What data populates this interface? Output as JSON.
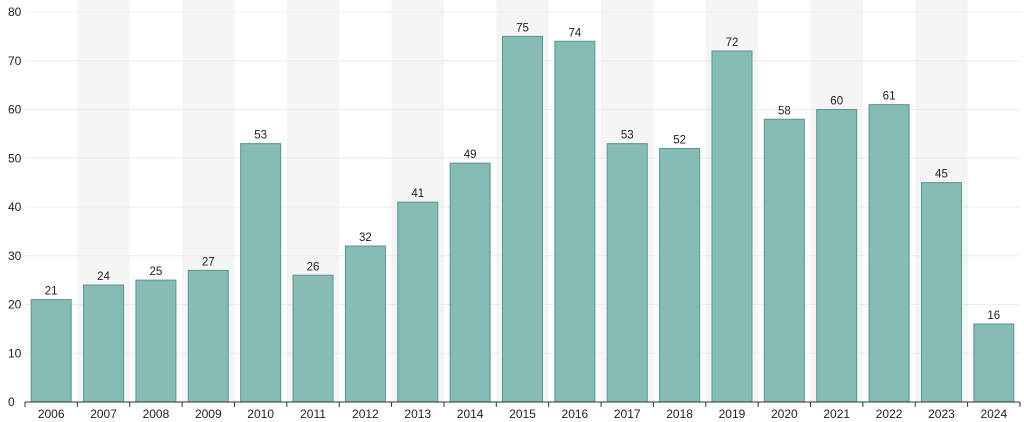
{
  "chart_data": {
    "type": "bar",
    "title": "",
    "xlabel": "",
    "ylabel": "",
    "categories": [
      "2006",
      "2007",
      "2008",
      "2009",
      "2010",
      "2011",
      "2012",
      "2013",
      "2014",
      "2015",
      "2016",
      "2017",
      "2018",
      "2019",
      "2020",
      "2021",
      "2022",
      "2023",
      "2024"
    ],
    "series": [
      {
        "values": [
          21,
          24,
          25,
          27,
          53,
          26,
          32,
          41,
          49,
          75,
          74,
          53,
          52,
          72,
          58,
          60,
          61,
          45,
          16
        ]
      }
    ],
    "ylim": [
      0,
      80
    ],
    "yticks": [
      0,
      10,
      20,
      30,
      40,
      50,
      60,
      70,
      80
    ],
    "grid": true,
    "data_labels": true,
    "legend": "none",
    "colors": {
      "bar_fill": "#87bbb5",
      "bar_stroke": "#4f9990",
      "band_shade": "#f5f5f5",
      "gridline": "#ececec",
      "axis": "#333333"
    }
  }
}
